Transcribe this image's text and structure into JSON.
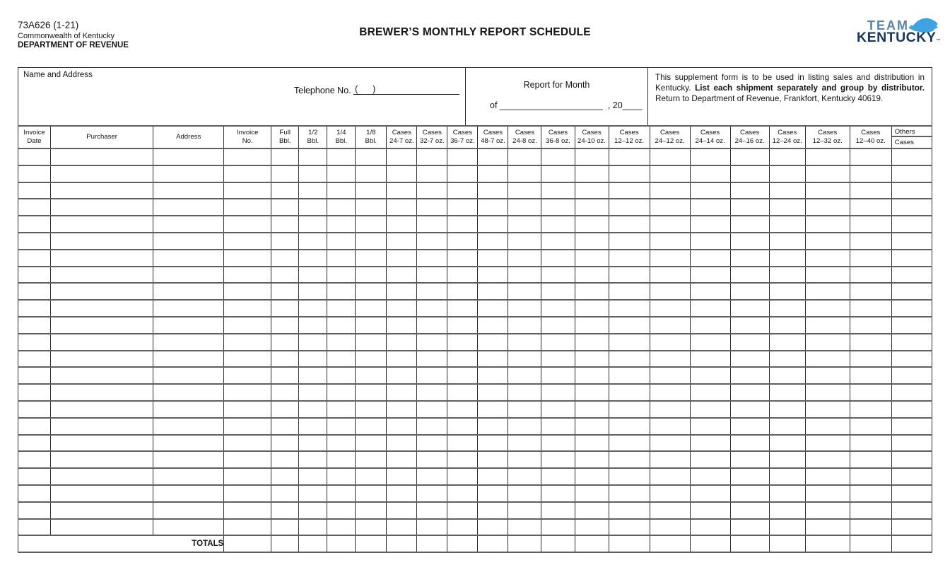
{
  "form": {
    "number": "73A626 (1-21)",
    "commonwealth": "Commonwealth of Kentucky",
    "department": "DEPARTMENT OF REVENUE",
    "title": "BREWER’S MONTHLY REPORT SCHEDULE"
  },
  "logo": {
    "team": "TEAM",
    "kentucky": "KENTUCKY",
    "trademark": "™",
    "colors": {
      "team": "#5d84a6",
      "kentucky": "#17365d",
      "state": "#3fa3e0"
    }
  },
  "header": {
    "name_address_label": "Name and Address",
    "telephone_label": "Telephone No.",
    "telephone_area_code": "(      )",
    "report_for_month": "Report for Month",
    "month_line": "of _____________________  , 20____",
    "instructions": {
      "part1": "This supplement form is to be used in listing sales and distribution in Kentucky. ",
      "bold": "List each shipment separately and group by distributor.",
      "part2": " Return to Department of Revenue, Frankfort, Kentucky 40619."
    }
  },
  "table": {
    "row_count": 23,
    "totals_label": "TOTALS",
    "columns": [
      {
        "id": "invoice-date",
        "line1": "Invoice",
        "line2": "Date"
      },
      {
        "id": "purchaser",
        "line1": "Purchaser",
        "line2": ""
      },
      {
        "id": "address",
        "line1": "Address",
        "line2": ""
      },
      {
        "id": "invoice-no",
        "line1": "Invoice",
        "line2": "No."
      },
      {
        "id": "full-bbl",
        "line1": "Full",
        "line2": "Bbl."
      },
      {
        "id": "half-bbl",
        "line1": "1/2",
        "line2": "Bbl."
      },
      {
        "id": "quarter-bbl",
        "line1": "1/4",
        "line2": "Bbl."
      },
      {
        "id": "eighth-bbl",
        "line1": "1/8",
        "line2": "Bbl."
      },
      {
        "id": "cases-24-7",
        "line1": "Cases",
        "line2": "24-7 oz."
      },
      {
        "id": "cases-32-7",
        "line1": "Cases",
        "line2": "32-7 oz."
      },
      {
        "id": "cases-36-7",
        "line1": "Cases",
        "line2": "36-7 oz."
      },
      {
        "id": "cases-48-7",
        "line1": "Cases",
        "line2": "48-7 oz."
      },
      {
        "id": "cases-24-8",
        "line1": "Cases",
        "line2": "24-8 oz."
      },
      {
        "id": "cases-36-8",
        "line1": "Cases",
        "line2": "36-8 oz."
      },
      {
        "id": "cases-24-10",
        "line1": "Cases",
        "line2": "24-10 oz."
      },
      {
        "id": "cases-12-12",
        "line1": "Cases",
        "line2": "12–12 oz."
      },
      {
        "id": "cases-24-12",
        "line1": "Cases",
        "line2": "24–12 oz."
      },
      {
        "id": "cases-24-14",
        "line1": "Cases",
        "line2": "24–14 oz."
      },
      {
        "id": "cases-24-16",
        "line1": "Cases",
        "line2": "24–16 oz."
      },
      {
        "id": "cases-12-24",
        "line1": "Cases",
        "line2": "12–24 oz."
      },
      {
        "id": "cases-12-32",
        "line1": "Cases",
        "line2": "12–32 oz."
      },
      {
        "id": "cases-12-40",
        "line1": "Cases",
        "line2": "12–40 oz."
      },
      {
        "id": "others",
        "line1": "Others",
        "line2": "Cases",
        "split": true
      }
    ]
  }
}
